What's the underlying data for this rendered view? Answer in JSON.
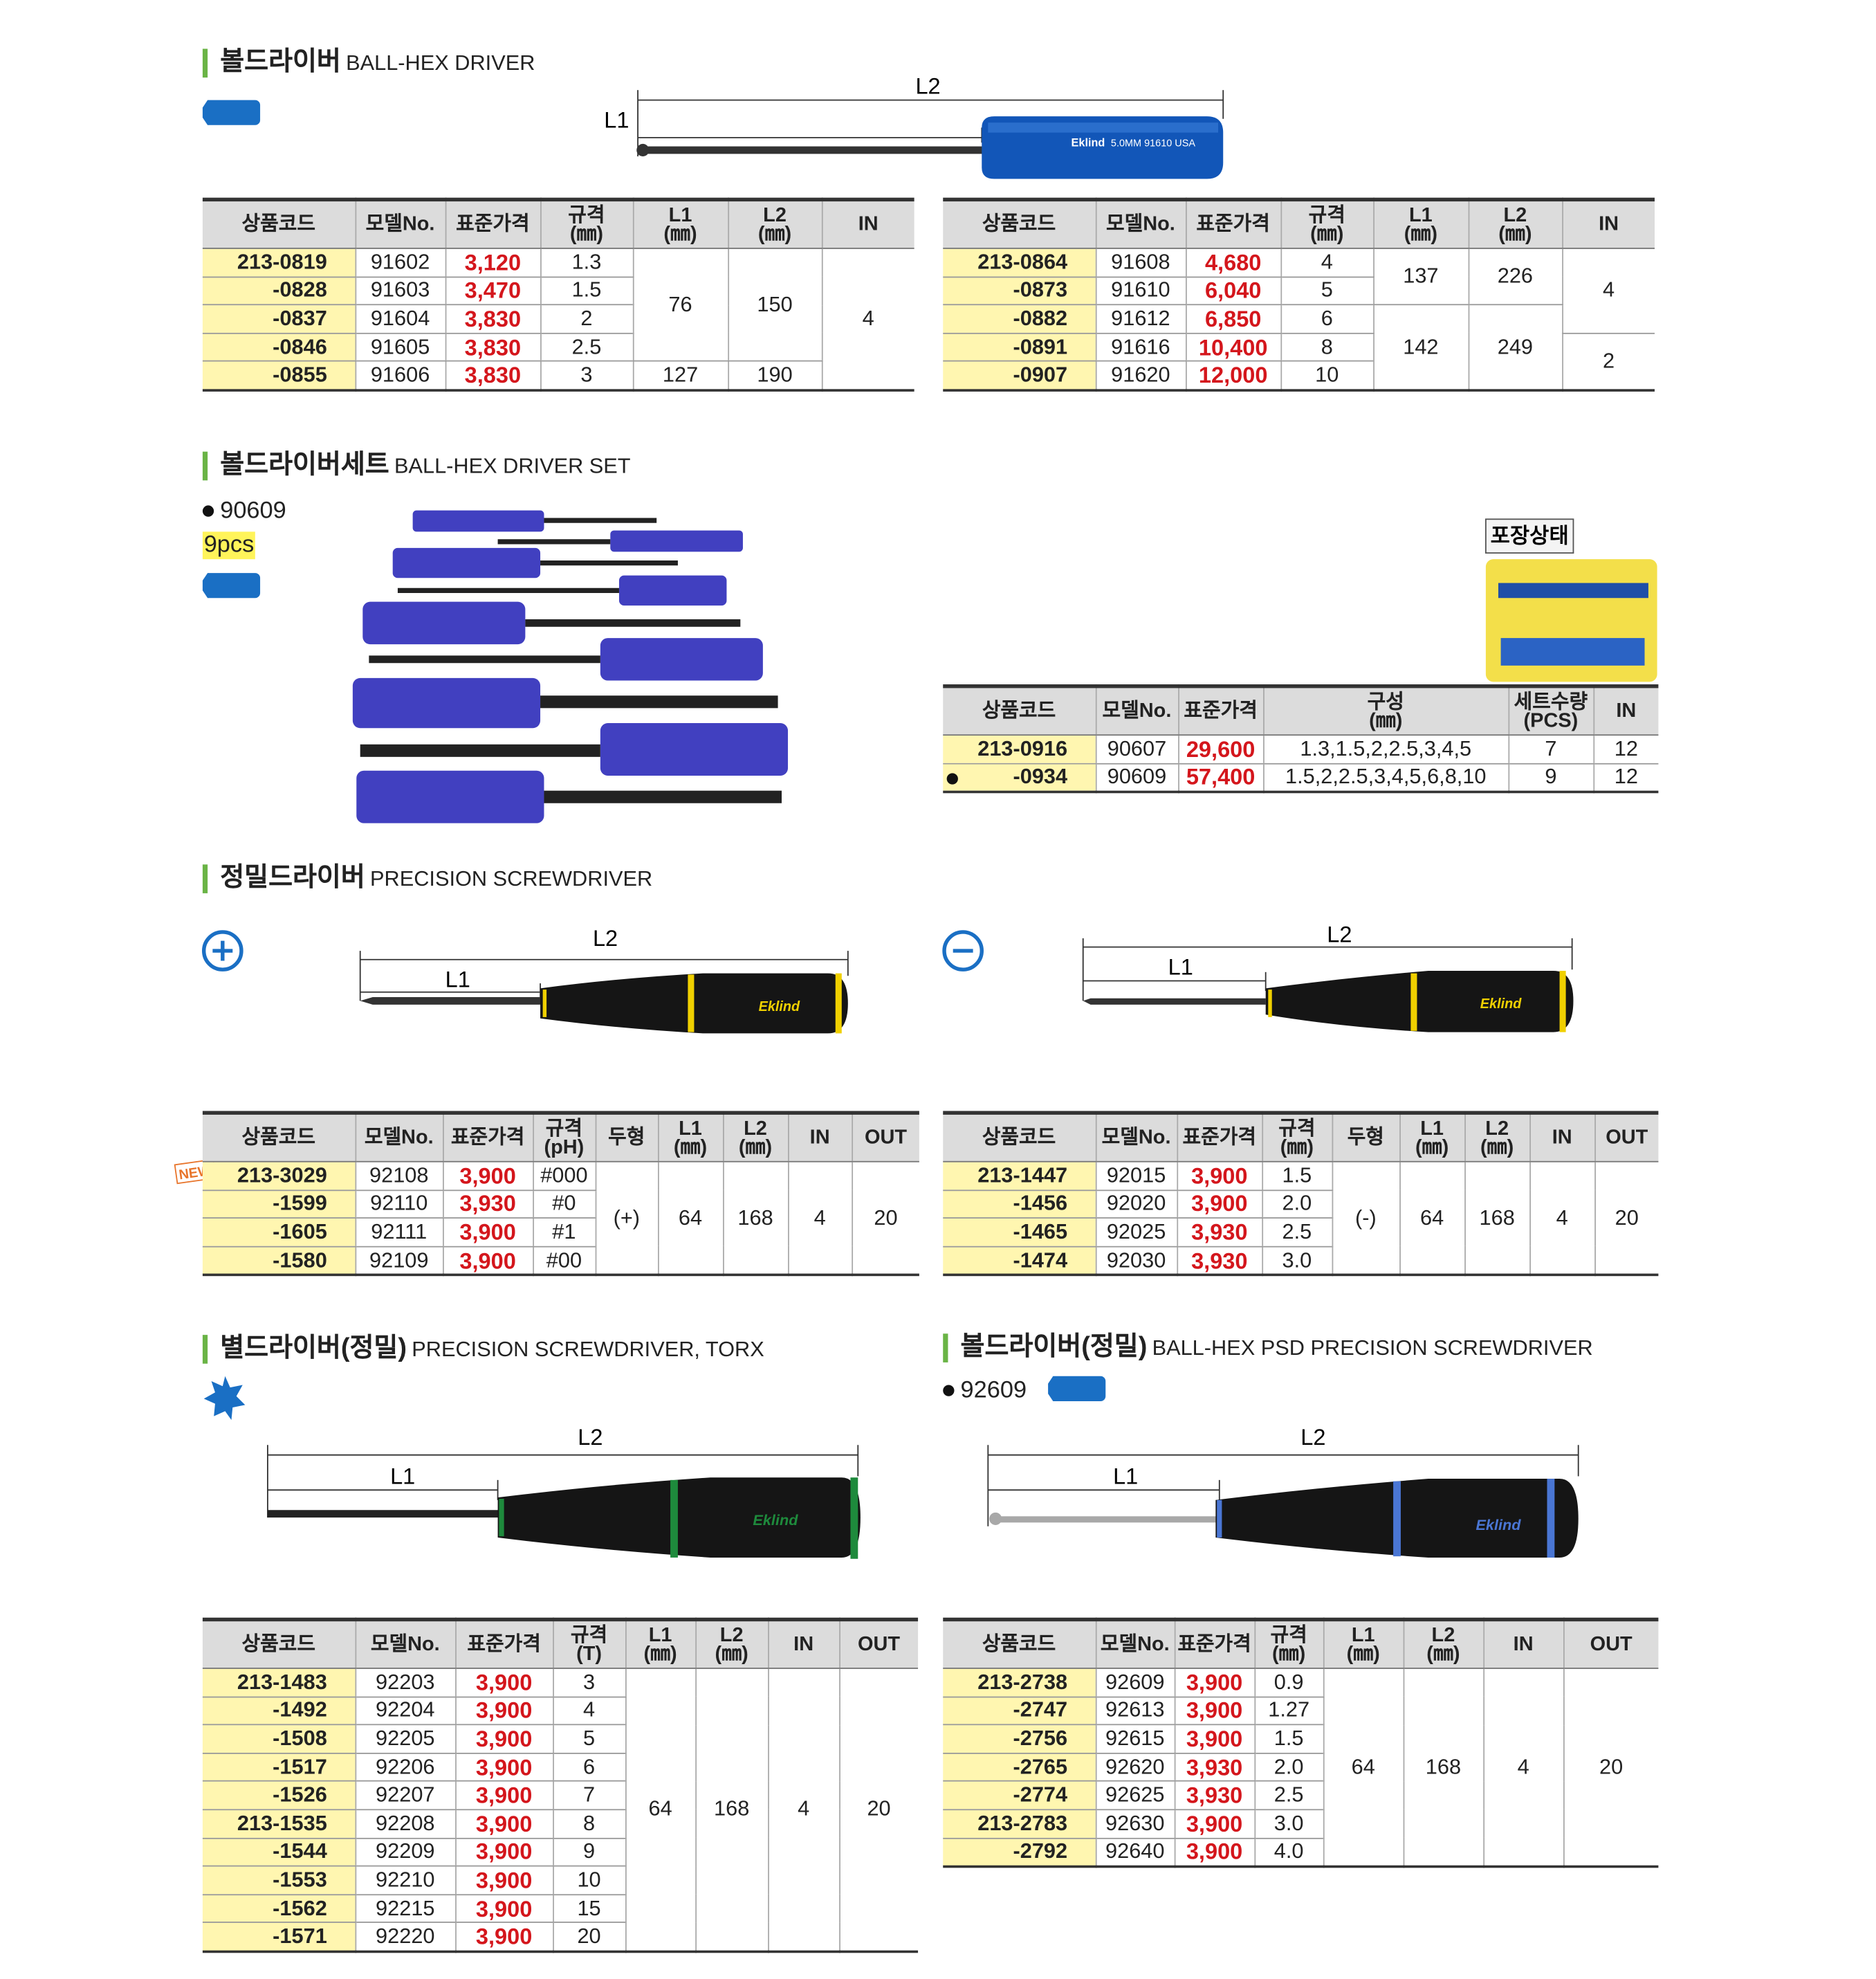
{
  "sections": [
    {
      "title_ko": "볼드라이버",
      "title_en": "BALL-HEX DRIVER",
      "figure": {
        "l1": "L1",
        "l2": "L2",
        "brand": "Eklind",
        "imprint": "5.0MM 91610 USA"
      },
      "tables": [
        {
          "headers": [
            "상품코드",
            "모델No.",
            "표준가격",
            "규격\n(㎜)",
            "L1\n(㎜)",
            "L2\n(㎜)",
            "IN"
          ],
          "rows": [
            [
              "213-0819",
              "91602",
              "3,120",
              "1.3",
              "76",
              "150",
              "4"
            ],
            [
              "-0828",
              "91603",
              "3,470",
              "1.5"
            ],
            [
              "-0837",
              "91604",
              "3,830",
              "2"
            ],
            [
              "-0846",
              "91605",
              "3,830",
              "2.5"
            ],
            [
              "-0855",
              "91606",
              "3,830",
              "3",
              "127",
              "190"
            ]
          ]
        },
        {
          "headers": [
            "상품코드",
            "모델No.",
            "표준가격",
            "규격\n(㎜)",
            "L1\n(㎜)",
            "L2\n(㎜)",
            "IN"
          ],
          "rows": [
            [
              "213-0864",
              "91608",
              "4,680",
              "4",
              "137",
              "226",
              "4"
            ],
            [
              "-0873",
              "91610",
              "6,040",
              "5"
            ],
            [
              "-0882",
              "91612",
              "6,850",
              "6",
              "142",
              "249"
            ],
            [
              "-0891",
              "91616",
              "10,400",
              "8",
              "2"
            ],
            [
              "-0907",
              "91620",
              "12,000",
              "10"
            ]
          ]
        }
      ]
    },
    {
      "title_ko": "볼드라이버세트",
      "title_en": "BALL-HEX DRIVER SET",
      "model": "90609",
      "pieces": "9pcs",
      "packaging": "포장상태",
      "tables": [
        {
          "headers": [
            "상품코드",
            "모델No.",
            "표준가격",
            "구성\n(㎜)",
            "세트수량\n(PCS)",
            "IN"
          ],
          "rows": [
            [
              "213-0916",
              "90607",
              "29,600",
              "1.3,1.5,2,2.5,3,4,5",
              "7",
              "12"
            ],
            [
              "-0934",
              "90609",
              "57,400",
              "1.5,2,2.5,3,4,5,6,8,10",
              "9",
              "12"
            ]
          ]
        }
      ]
    },
    {
      "title_ko": "정밀드라이버",
      "title_en": "PRECISION SCREWDRIVER",
      "badge": "NEW",
      "figures": [
        {
          "l1": "L1",
          "l2": "L2",
          "brand": "Eklind"
        },
        {
          "l1": "L1",
          "l2": "L2",
          "brand": "Eklind"
        }
      ],
      "tables": [
        {
          "headers": [
            "상품코드",
            "모델No.",
            "표준가격",
            "규격\n(pH)",
            "두형",
            "L1\n(㎜)",
            "L2\n(㎜)",
            "IN",
            "OUT"
          ],
          "rows": [
            [
              "213-3029",
              "92108",
              "3,900",
              "#000",
              "(+)",
              "64",
              "168",
              "4",
              "20"
            ],
            [
              "-1599",
              "92110",
              "3,930",
              "#0"
            ],
            [
              "-1605",
              "92111",
              "3,900",
              "#1"
            ],
            [
              "-1580",
              "92109",
              "3,900",
              "#00"
            ]
          ]
        },
        {
          "headers": [
            "상품코드",
            "모델No.",
            "표준가격",
            "규격(㎜)",
            "두형",
            "L1\n(㎜)",
            "L2\n(㎜)",
            "IN",
            "OUT"
          ],
          "rows": [
            [
              "213-1447",
              "92015",
              "3,900",
              "1.5",
              "(-)",
              "64",
              "168",
              "4",
              "20"
            ],
            [
              "-1456",
              "92020",
              "3,900",
              "2.0"
            ],
            [
              "-1465",
              "92025",
              "3,930",
              "2.5"
            ],
            [
              "-1474",
              "92030",
              "3,930",
              "3.0"
            ]
          ]
        }
      ]
    },
    {
      "title_ko": "별드라이버(정밀)",
      "title_en": "PRECISION SCREWDRIVER, TORX",
      "figure": {
        "l1": "L1",
        "l2": "L2",
        "brand": "Eklind"
      },
      "tables": [
        {
          "headers": [
            "상품코드",
            "모델No.",
            "표준가격",
            "규격\n(T)",
            "L1\n(㎜)",
            "L2\n(㎜)",
            "IN",
            "OUT"
          ],
          "rows": [
            [
              "213-1483",
              "92203",
              "3,900",
              "3",
              "64",
              "168",
              "4",
              "20"
            ],
            [
              "-1492",
              "92204",
              "3,900",
              "4"
            ],
            [
              "-1508",
              "92205",
              "3,900",
              "5"
            ],
            [
              "-1517",
              "92206",
              "3,900",
              "6"
            ],
            [
              "-1526",
              "92207",
              "3,900",
              "7"
            ],
            [
              "213-1535",
              "92208",
              "3,900",
              "8"
            ],
            [
              "-1544",
              "92209",
              "3,900",
              "9"
            ],
            [
              "-1553",
              "92210",
              "3,900",
              "10"
            ],
            [
              "-1562",
              "92215",
              "3,900",
              "15"
            ],
            [
              "-1571",
              "92220",
              "3,900",
              "20"
            ]
          ]
        }
      ]
    },
    {
      "title_ko": "볼드라이버(정밀)",
      "title_en": "BALL-HEX PSD PRECISION SCREWDRIVER",
      "model": "92609",
      "figure": {
        "l1": "L1",
        "l2": "L2",
        "brand": "Eklind"
      },
      "tables": [
        {
          "headers": [
            "상품코드",
            "모델No.",
            "표준가격",
            "규격\n(㎜)",
            "L1\n(㎜)",
            "L2\n(㎜)",
            "IN",
            "OUT"
          ],
          "rows": [
            [
              "213-2738",
              "92609",
              "3,900",
              "0.9",
              "64",
              "168",
              "4",
              "20"
            ],
            [
              "-2747",
              "92613",
              "3,900",
              "1.27"
            ],
            [
              "-2756",
              "92615",
              "3,900",
              "1.5"
            ],
            [
              "-2765",
              "92620",
              "3,930",
              "2.0"
            ],
            [
              "-2774",
              "92625",
              "3,930",
              "2.5"
            ],
            [
              "213-2783",
              "92630",
              "3,900",
              "3.0"
            ],
            [
              "-2792",
              "92640",
              "3,900",
              "4.0"
            ]
          ]
        }
      ]
    }
  ]
}
